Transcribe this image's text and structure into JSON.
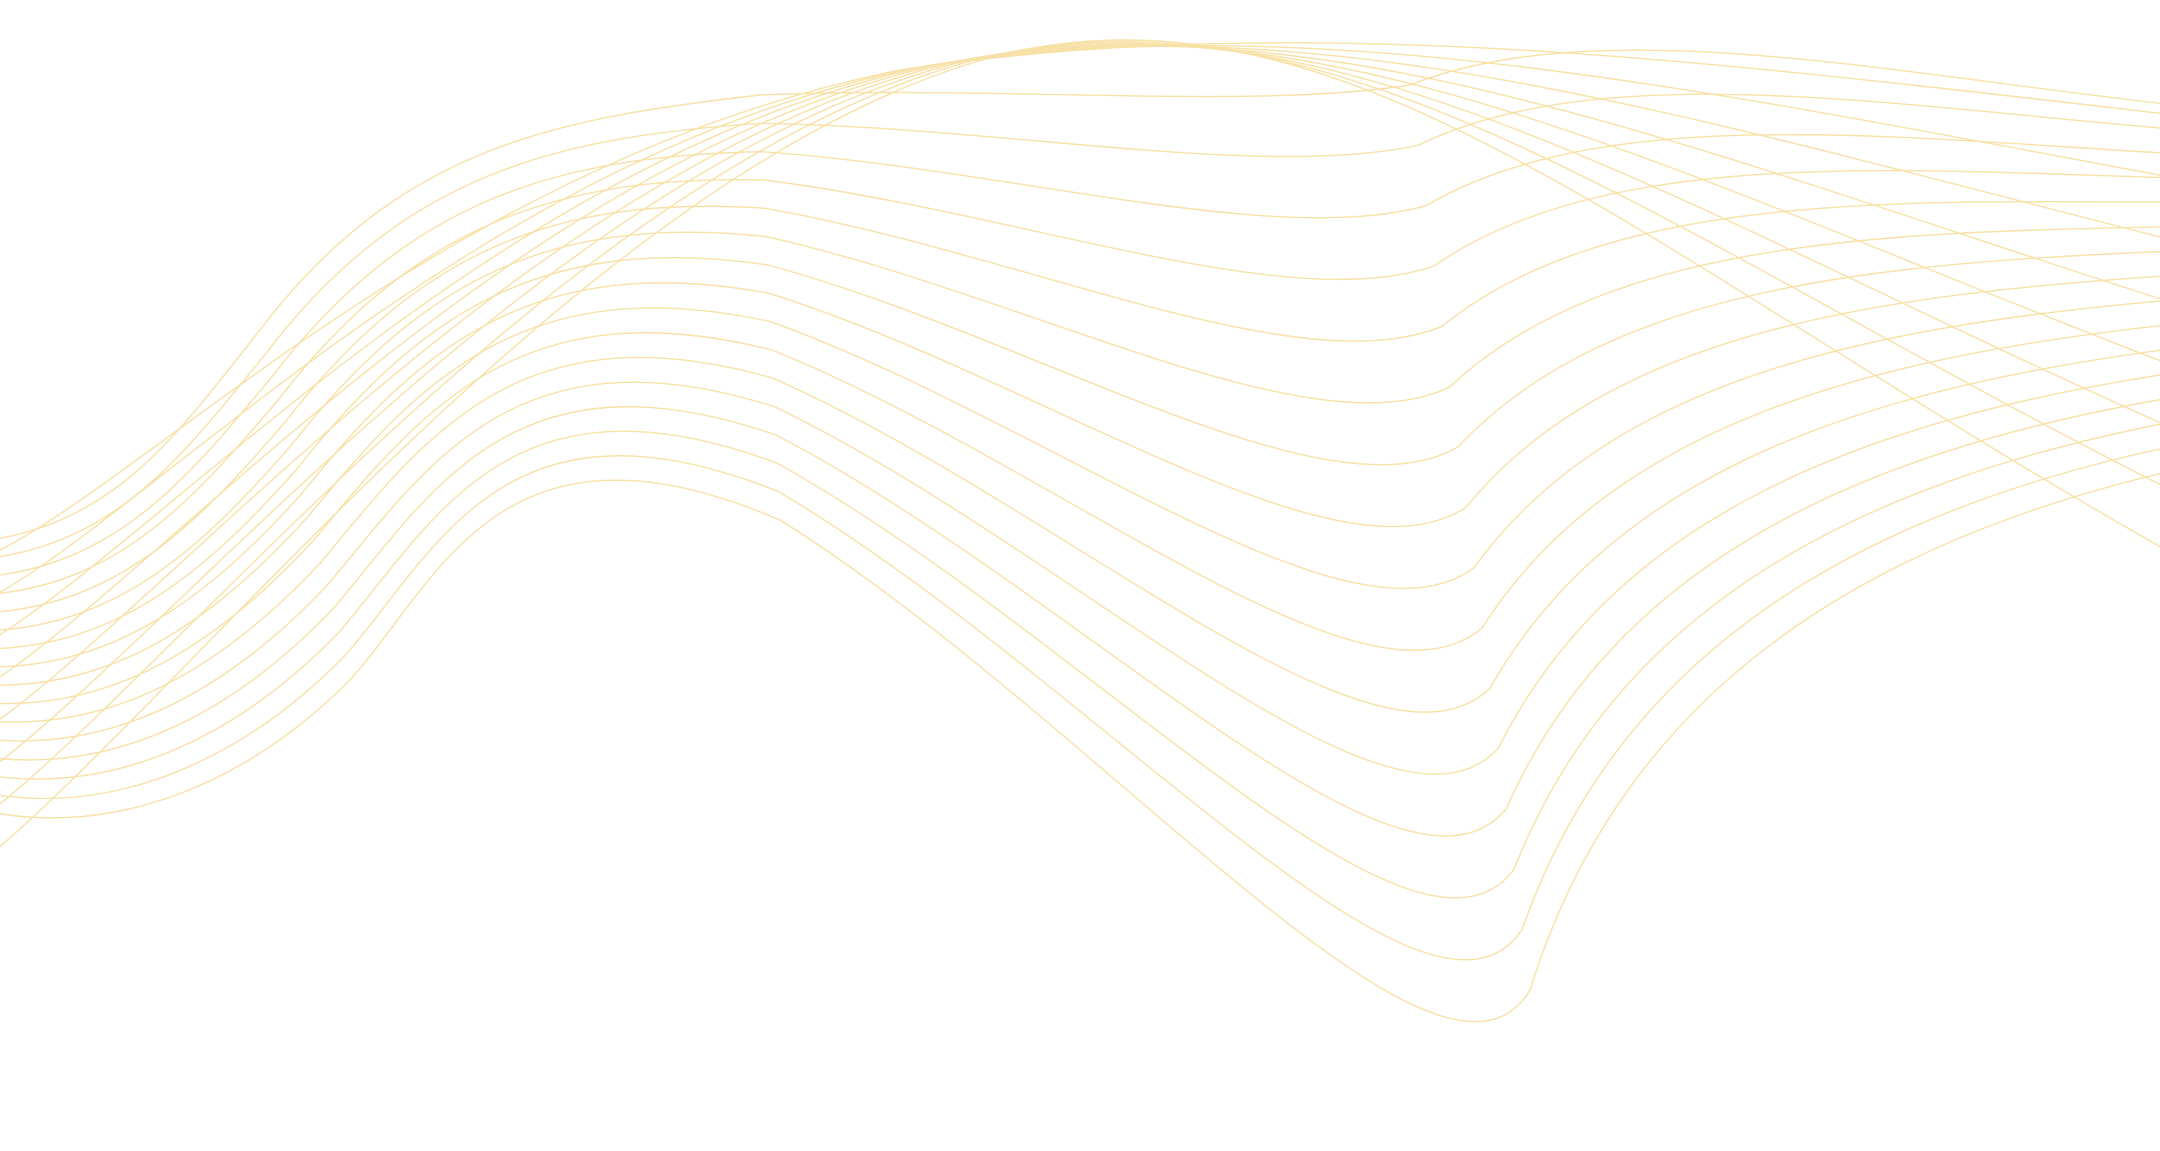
{
  "background": {
    "color": "#ffffff"
  },
  "decoration": {
    "kind": "line-wave-pattern",
    "stroke_color": "#f7e1a6",
    "families": [
      "lower-wave-lines",
      "upper-arc-lines"
    ],
    "lower_wave_line_count": 16,
    "upper_arc_line_count": 8
  }
}
